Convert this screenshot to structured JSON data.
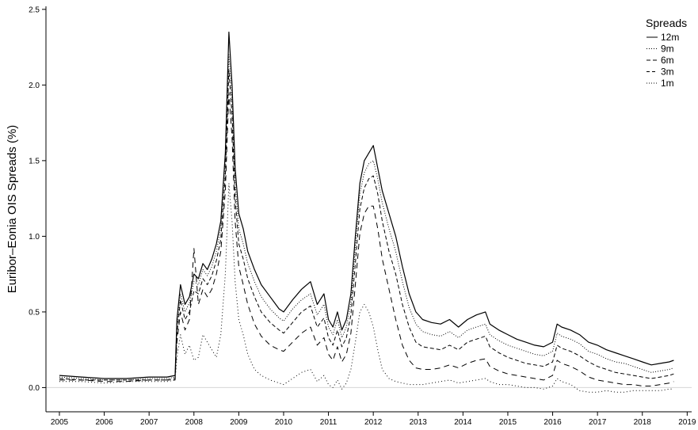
{
  "chart_data": {
    "type": "line",
    "title": "",
    "xlabel": "",
    "ylabel": "Euribor–Eonia OIS Spreads (%)",
    "xlim": [
      2004.7,
      2019.1
    ],
    "ylim": [
      -0.16,
      2.52
    ],
    "grid": false,
    "zero_line": true,
    "x_ticks": [
      2005,
      2006,
      2007,
      2008,
      2009,
      2010,
      2011,
      2012,
      2013,
      2014,
      2015,
      2016,
      2017,
      2018,
      2019
    ],
    "x_tick_labels": [
      "2005",
      "2006",
      "2007",
      "2008",
      "2009",
      "2010",
      "2011",
      "2012",
      "2013",
      "2014",
      "2015",
      "2016",
      "2017",
      "2018",
      "2019"
    ],
    "y_ticks": [
      0.0,
      0.5,
      1.0,
      1.5,
      2.0,
      2.5
    ],
    "y_tick_labels": [
      "0.0",
      "0.5",
      "1.0",
      "1.5",
      "2.0",
      "2.5"
    ],
    "legend": {
      "title": "Spreads",
      "position": "top-right",
      "entries": [
        "12m",
        "9m",
        "6m",
        "3m",
        "1m"
      ]
    },
    "series": [
      {
        "name": "12m",
        "dash": "solid",
        "x": [
          2005.0,
          2005.5,
          2006.0,
          2006.5,
          2007.0,
          2007.4,
          2007.58,
          2007.62,
          2007.7,
          2007.8,
          2007.9,
          2008.0,
          2008.1,
          2008.2,
          2008.3,
          2008.4,
          2008.5,
          2008.6,
          2008.7,
          2008.78,
          2008.85,
          2008.92,
          2009.0,
          2009.1,
          2009.2,
          2009.35,
          2009.5,
          2009.7,
          2009.9,
          2010.0,
          2010.2,
          2010.4,
          2010.6,
          2010.75,
          2010.9,
          2011.0,
          2011.1,
          2011.2,
          2011.3,
          2011.4,
          2011.5,
          2011.6,
          2011.7,
          2011.8,
          2011.9,
          2012.0,
          2012.1,
          2012.2,
          2012.35,
          2012.5,
          2012.65,
          2012.8,
          2012.95,
          2013.1,
          2013.3,
          2013.5,
          2013.7,
          2013.9,
          2014.1,
          2014.3,
          2014.5,
          2014.6,
          2014.8,
          2015.0,
          2015.2,
          2015.4,
          2015.6,
          2015.8,
          2016.0,
          2016.1,
          2016.2,
          2016.4,
          2016.6,
          2016.8,
          2017.0,
          2017.2,
          2017.4,
          2017.6,
          2017.8,
          2018.0,
          2018.2,
          2018.4,
          2018.6,
          2018.7
        ],
        "y": [
          0.08,
          0.07,
          0.06,
          0.06,
          0.07,
          0.07,
          0.08,
          0.45,
          0.68,
          0.55,
          0.6,
          0.75,
          0.72,
          0.82,
          0.78,
          0.85,
          0.95,
          1.1,
          1.55,
          2.35,
          2.0,
          1.45,
          1.15,
          1.05,
          0.9,
          0.78,
          0.68,
          0.6,
          0.52,
          0.5,
          0.58,
          0.65,
          0.7,
          0.55,
          0.62,
          0.45,
          0.4,
          0.5,
          0.38,
          0.45,
          0.62,
          1.0,
          1.35,
          1.5,
          1.55,
          1.6,
          1.45,
          1.3,
          1.15,
          1.0,
          0.8,
          0.62,
          0.5,
          0.45,
          0.43,
          0.42,
          0.45,
          0.4,
          0.45,
          0.48,
          0.5,
          0.42,
          0.38,
          0.35,
          0.32,
          0.3,
          0.28,
          0.27,
          0.3,
          0.42,
          0.4,
          0.38,
          0.35,
          0.3,
          0.28,
          0.25,
          0.23,
          0.21,
          0.19,
          0.17,
          0.15,
          0.16,
          0.17,
          0.18
        ]
      },
      {
        "name": "9m",
        "dash": "1,2",
        "x": [
          2005.0,
          2005.5,
          2006.0,
          2006.5,
          2007.0,
          2007.4,
          2007.58,
          2007.62,
          2007.7,
          2007.8,
          2007.9,
          2008.0,
          2008.1,
          2008.2,
          2008.3,
          2008.4,
          2008.5,
          2008.6,
          2008.7,
          2008.78,
          2008.85,
          2008.92,
          2009.0,
          2009.1,
          2009.2,
          2009.35,
          2009.5,
          2009.7,
          2009.9,
          2010.0,
          2010.2,
          2010.4,
          2010.6,
          2010.75,
          2010.9,
          2011.0,
          2011.1,
          2011.2,
          2011.3,
          2011.4,
          2011.5,
          2011.6,
          2011.7,
          2011.8,
          2011.9,
          2012.0,
          2012.1,
          2012.2,
          2012.35,
          2012.5,
          2012.65,
          2012.8,
          2012.95,
          2013.1,
          2013.3,
          2013.5,
          2013.7,
          2013.9,
          2014.1,
          2014.3,
          2014.5,
          2014.6,
          2014.8,
          2015.0,
          2015.2,
          2015.4,
          2015.6,
          2015.8,
          2016.0,
          2016.1,
          2016.2,
          2016.4,
          2016.6,
          2016.8,
          2017.0,
          2017.2,
          2017.4,
          2017.6,
          2017.8,
          2018.0,
          2018.2,
          2018.4,
          2018.6,
          2018.7
        ],
        "y": [
          0.07,
          0.06,
          0.05,
          0.05,
          0.06,
          0.06,
          0.07,
          0.4,
          0.62,
          0.5,
          0.56,
          0.7,
          0.68,
          0.78,
          0.74,
          0.8,
          0.9,
          1.05,
          1.5,
          2.2,
          1.9,
          1.35,
          1.05,
          0.95,
          0.82,
          0.7,
          0.6,
          0.52,
          0.46,
          0.44,
          0.52,
          0.58,
          0.62,
          0.48,
          0.55,
          0.4,
          0.35,
          0.45,
          0.33,
          0.4,
          0.56,
          0.92,
          1.28,
          1.42,
          1.48,
          1.5,
          1.38,
          1.22,
          1.05,
          0.9,
          0.7,
          0.53,
          0.42,
          0.37,
          0.35,
          0.34,
          0.37,
          0.33,
          0.38,
          0.4,
          0.42,
          0.35,
          0.31,
          0.28,
          0.26,
          0.24,
          0.22,
          0.21,
          0.24,
          0.36,
          0.34,
          0.32,
          0.29,
          0.24,
          0.22,
          0.19,
          0.17,
          0.16,
          0.14,
          0.12,
          0.1,
          0.11,
          0.12,
          0.13
        ]
      },
      {
        "name": "6m",
        "dash": "5,3",
        "x": [
          2005.0,
          2005.5,
          2006.0,
          2006.5,
          2007.0,
          2007.4,
          2007.58,
          2007.62,
          2007.7,
          2007.8,
          2007.9,
          2008.0,
          2008.1,
          2008.2,
          2008.3,
          2008.4,
          2008.5,
          2008.6,
          2008.7,
          2008.78,
          2008.85,
          2008.92,
          2009.0,
          2009.1,
          2009.2,
          2009.35,
          2009.5,
          2009.7,
          2009.9,
          2010.0,
          2010.2,
          2010.4,
          2010.6,
          2010.75,
          2010.9,
          2011.0,
          2011.1,
          2011.2,
          2011.3,
          2011.4,
          2011.5,
          2011.6,
          2011.7,
          2011.8,
          2011.9,
          2012.0,
          2012.1,
          2012.2,
          2012.35,
          2012.5,
          2012.65,
          2012.8,
          2012.95,
          2013.1,
          2013.3,
          2013.5,
          2013.7,
          2013.9,
          2014.1,
          2014.3,
          2014.5,
          2014.6,
          2014.8,
          2015.0,
          2015.2,
          2015.4,
          2015.6,
          2015.8,
          2016.0,
          2016.1,
          2016.2,
          2016.4,
          2016.6,
          2016.8,
          2017.0,
          2017.2,
          2017.4,
          2017.6,
          2017.8,
          2018.0,
          2018.2,
          2018.4,
          2018.6,
          2018.7
        ],
        "y": [
          0.06,
          0.05,
          0.05,
          0.05,
          0.05,
          0.05,
          0.06,
          0.35,
          0.58,
          0.45,
          0.5,
          0.64,
          0.62,
          0.72,
          0.68,
          0.74,
          0.84,
          0.98,
          1.4,
          2.1,
          1.8,
          1.25,
          0.95,
          0.85,
          0.72,
          0.6,
          0.5,
          0.43,
          0.38,
          0.36,
          0.43,
          0.5,
          0.54,
          0.4,
          0.46,
          0.33,
          0.28,
          0.38,
          0.27,
          0.33,
          0.48,
          0.82,
          1.18,
          1.32,
          1.38,
          1.4,
          1.28,
          1.1,
          0.9,
          0.75,
          0.55,
          0.4,
          0.3,
          0.27,
          0.26,
          0.25,
          0.28,
          0.25,
          0.3,
          0.32,
          0.34,
          0.27,
          0.23,
          0.2,
          0.18,
          0.16,
          0.15,
          0.14,
          0.17,
          0.28,
          0.26,
          0.24,
          0.21,
          0.17,
          0.14,
          0.12,
          0.1,
          0.09,
          0.08,
          0.07,
          0.06,
          0.07,
          0.08,
          0.09
        ]
      },
      {
        "name": "3m",
        "dash": "7,5",
        "x": [
          2005.0,
          2005.5,
          2006.0,
          2006.5,
          2007.0,
          2007.4,
          2007.58,
          2007.62,
          2007.7,
          2007.8,
          2007.9,
          2008.0,
          2008.1,
          2008.2,
          2008.3,
          2008.4,
          2008.5,
          2008.6,
          2008.7,
          2008.78,
          2008.85,
          2008.92,
          2009.0,
          2009.1,
          2009.2,
          2009.35,
          2009.5,
          2009.7,
          2009.9,
          2010.0,
          2010.2,
          2010.4,
          2010.6,
          2010.75,
          2010.9,
          2011.0,
          2011.1,
          2011.2,
          2011.3,
          2011.4,
          2011.5,
          2011.6,
          2011.7,
          2011.8,
          2011.9,
          2012.0,
          2012.1,
          2012.2,
          2012.35,
          2012.5,
          2012.65,
          2012.8,
          2012.95,
          2013.1,
          2013.3,
          2013.5,
          2013.7,
          2013.9,
          2014.1,
          2014.3,
          2014.5,
          2014.6,
          2014.8,
          2015.0,
          2015.2,
          2015.4,
          2015.6,
          2015.8,
          2016.0,
          2016.1,
          2016.2,
          2016.4,
          2016.6,
          2016.8,
          2017.0,
          2017.2,
          2017.4,
          2017.6,
          2017.8,
          2018.0,
          2018.2,
          2018.4,
          2018.6,
          2018.7
        ],
        "y": [
          0.05,
          0.05,
          0.04,
          0.04,
          0.05,
          0.05,
          0.05,
          0.3,
          0.5,
          0.38,
          0.45,
          0.92,
          0.55,
          0.65,
          0.6,
          0.65,
          0.75,
          0.9,
          1.3,
          1.95,
          1.65,
          1.1,
          0.8,
          0.68,
          0.55,
          0.42,
          0.34,
          0.28,
          0.25,
          0.24,
          0.3,
          0.36,
          0.4,
          0.28,
          0.33,
          0.22,
          0.18,
          0.27,
          0.17,
          0.22,
          0.36,
          0.68,
          1.02,
          1.15,
          1.2,
          1.2,
          1.05,
          0.85,
          0.65,
          0.45,
          0.28,
          0.18,
          0.13,
          0.12,
          0.12,
          0.13,
          0.15,
          0.13,
          0.16,
          0.18,
          0.19,
          0.14,
          0.11,
          0.09,
          0.08,
          0.07,
          0.06,
          0.05,
          0.08,
          0.18,
          0.16,
          0.14,
          0.11,
          0.07,
          0.05,
          0.04,
          0.03,
          0.02,
          0.02,
          0.01,
          0.01,
          0.02,
          0.03,
          0.04
        ]
      },
      {
        "name": "1m",
        "dash": "1,3",
        "x": [
          2005.0,
          2005.5,
          2006.0,
          2006.5,
          2007.0,
          2007.4,
          2007.58,
          2007.62,
          2007.7,
          2007.8,
          2007.9,
          2008.0,
          2008.1,
          2008.2,
          2008.3,
          2008.4,
          2008.5,
          2008.6,
          2008.7,
          2008.78,
          2008.85,
          2008.92,
          2009.0,
          2009.1,
          2009.2,
          2009.35,
          2009.5,
          2009.7,
          2009.9,
          2010.0,
          2010.2,
          2010.4,
          2010.6,
          2010.75,
          2010.9,
          2011.0,
          2011.1,
          2011.2,
          2011.3,
          2011.4,
          2011.5,
          2011.6,
          2011.7,
          2011.8,
          2011.9,
          2012.0,
          2012.1,
          2012.2,
          2012.35,
          2012.5,
          2012.65,
          2012.8,
          2012.95,
          2013.1,
          2013.3,
          2013.5,
          2013.7,
          2013.9,
          2014.1,
          2014.3,
          2014.5,
          2014.6,
          2014.8,
          2015.0,
          2015.2,
          2015.4,
          2015.6,
          2015.8,
          2016.0,
          2016.1,
          2016.2,
          2016.4,
          2016.6,
          2016.8,
          2017.0,
          2017.2,
          2017.4,
          2017.6,
          2017.8,
          2018.0,
          2018.2,
          2018.4,
          2018.6,
          2018.7
        ],
        "y": [
          0.04,
          0.04,
          0.03,
          0.04,
          0.04,
          0.04,
          0.05,
          0.2,
          0.35,
          0.22,
          0.28,
          0.18,
          0.2,
          0.35,
          0.3,
          0.25,
          0.2,
          0.35,
          0.75,
          1.35,
          1.1,
          0.7,
          0.45,
          0.35,
          0.22,
          0.12,
          0.08,
          0.05,
          0.03,
          0.02,
          0.06,
          0.1,
          0.12,
          0.04,
          0.08,
          0.02,
          0.0,
          0.05,
          -0.01,
          0.03,
          0.12,
          0.3,
          0.5,
          0.55,
          0.5,
          0.4,
          0.25,
          0.12,
          0.06,
          0.04,
          0.03,
          0.02,
          0.02,
          0.02,
          0.03,
          0.04,
          0.05,
          0.03,
          0.04,
          0.05,
          0.06,
          0.04,
          0.02,
          0.02,
          0.01,
          0.0,
          0.0,
          -0.01,
          0.01,
          0.06,
          0.04,
          0.02,
          -0.02,
          -0.03,
          -0.03,
          -0.02,
          -0.03,
          -0.03,
          -0.02,
          -0.02,
          -0.02,
          -0.02,
          -0.01,
          -0.01
        ]
      }
    ]
  }
}
